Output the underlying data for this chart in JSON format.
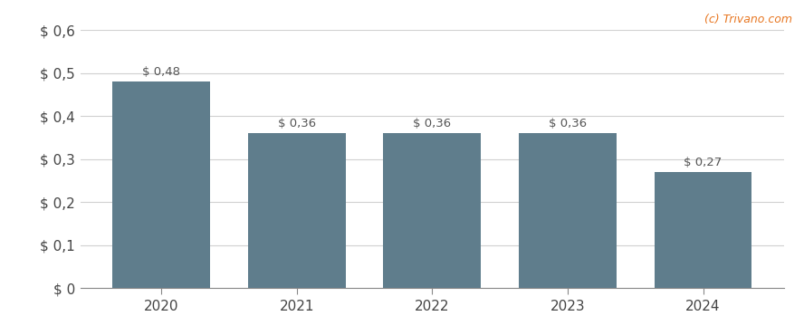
{
  "categories": [
    "2020",
    "2021",
    "2022",
    "2023",
    "2024"
  ],
  "values": [
    0.48,
    0.36,
    0.36,
    0.36,
    0.27
  ],
  "bar_color": "#5f7d8c",
  "ylim": [
    0,
    0.6
  ],
  "yticks": [
    0.0,
    0.1,
    0.2,
    0.3,
    0.4,
    0.5,
    0.6
  ],
  "ytick_labels": [
    "$ 0",
    "$ 0,1",
    "$ 0,2",
    "$ 0,3",
    "$ 0,4",
    "$ 0,5",
    "$ 0,6"
  ],
  "bar_labels": [
    "$ 0,48",
    "$ 0,36",
    "$ 0,36",
    "$ 0,36",
    "$ 0,27"
  ],
  "background_color": "#ffffff",
  "grid_color": "#d0d0d0",
  "annotation_color": "#555555",
  "watermark_text": "(c) Trivano.com",
  "watermark_color": "#e87722",
  "annotation_fontsize": 9.5,
  "tick_fontsize": 11,
  "bar_width": 0.72
}
